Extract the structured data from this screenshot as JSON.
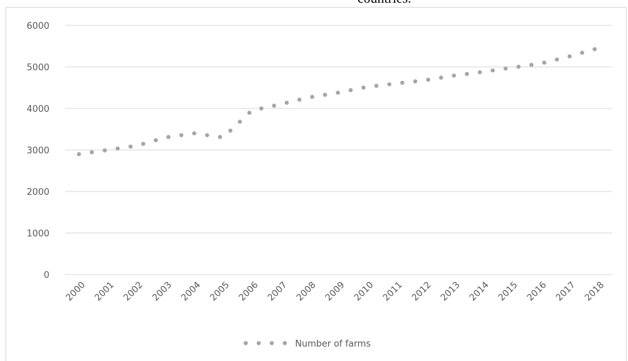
{
  "chart_data": {
    "type": "line",
    "title": "countries.",
    "categories": [
      "2000",
      "2001",
      "2002",
      "2003",
      "2004",
      "2005",
      "2006",
      "2007",
      "2008",
      "2009",
      "2010",
      "2011",
      "2012",
      "2013",
      "2014",
      "2015",
      "2016",
      "2017",
      "2018"
    ],
    "series": [
      {
        "name": "Number of farms",
        "color": "#a5a5a5",
        "values": [
          2900,
          3000,
          3100,
          3300,
          3400,
          3300,
          3950,
          4100,
          4270,
          4380,
          4520,
          4600,
          4680,
          4790,
          4880,
          4980,
          5080,
          5250,
          5450
        ]
      }
    ],
    "ylim": [
      0,
      6000
    ],
    "yticks": [
      0,
      1000,
      2000,
      3000,
      4000,
      5000,
      6000
    ],
    "grid": true,
    "legend": "bottom"
  }
}
